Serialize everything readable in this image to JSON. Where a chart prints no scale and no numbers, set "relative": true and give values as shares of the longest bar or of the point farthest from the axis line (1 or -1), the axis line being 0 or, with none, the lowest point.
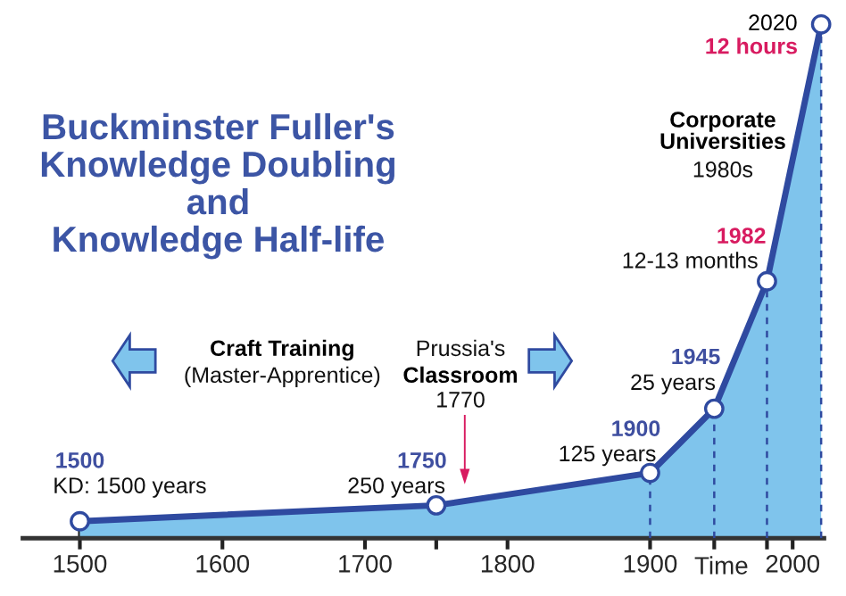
{
  "chart_data": {
    "type": "area",
    "title": "Buckminster Fuller's\nKnowledge Doubling\nand\nKnowledge Half-life",
    "xlabel": "Time",
    "relative": true,
    "series": [
      {
        "color": "#2f4aa0",
        "x": [
          1500,
          1750,
          1900,
          1945,
          1982,
          2020
        ],
        "values": [
          0.033,
          0.064,
          0.127,
          0.252,
          0.5,
          1.0
        ]
      }
    ],
    "marker": "circle",
    "legend": false,
    "grid": false,
    "xlim": [
      1460,
      2022
    ],
    "xticks": [
      1500,
      1600,
      1700,
      {
        "value": 1750,
        "label": null
      },
      1800,
      1900,
      {
        "value": 1945,
        "label": null
      },
      {
        "value": 1982,
        "label": null
      },
      2000
    ],
    "ref_lines": [
      {
        "axis": "x",
        "value": 1900,
        "line_style": "dashed",
        "color": "#2f4aa0"
      },
      {
        "axis": "x",
        "value": 1945,
        "line_style": "dashed",
        "color": "#2f4aa0"
      },
      {
        "axis": "x",
        "value": 1982,
        "line_style": "dashed",
        "color": "#2f4aa0"
      },
      {
        "axis": "x",
        "value": 2020,
        "line_style": "dashed",
        "color": "#2f4aa0"
      }
    ],
    "annotations": [
      "1500",
      "KD: 1500 years",
      "1750",
      "250 years",
      "1900",
      "125 years",
      "1945",
      "25 years",
      "1982",
      "12-13 months",
      "Corporate\nUniversities",
      "1980s",
      "2020",
      "12 hours",
      "Craft Training",
      "(Master-Apprentice)",
      "Prussia's",
      "Classroom",
      "1770"
    ]
  }
}
